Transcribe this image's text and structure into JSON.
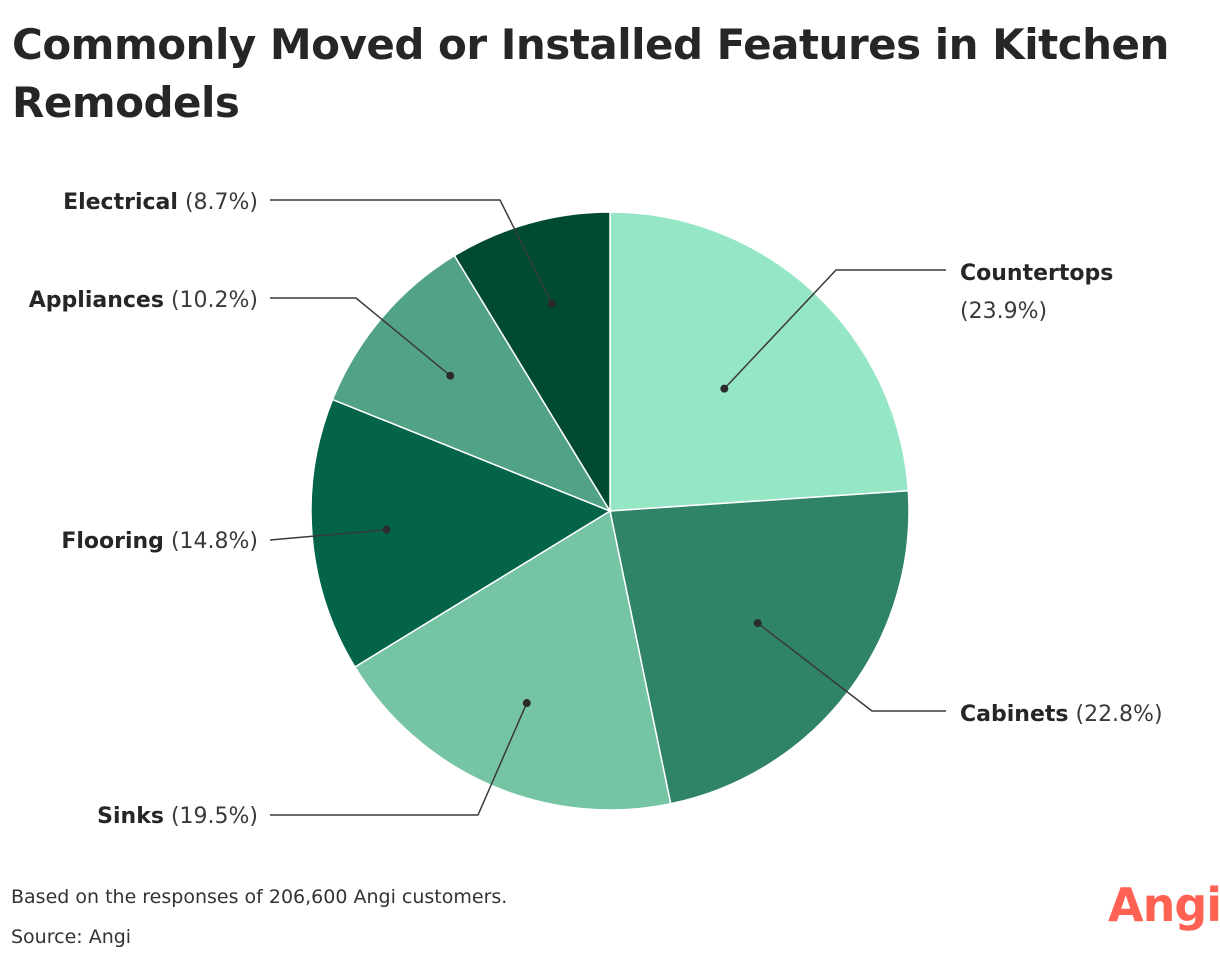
{
  "chart_data": {
    "type": "pie",
    "title": "Commonly Moved or Installed Features in Kitchen Remodels",
    "categories": [
      "Countertops",
      "Cabinets",
      "Sinks",
      "Flooring",
      "Appliances",
      "Electrical"
    ],
    "values": [
      23.9,
      22.8,
      19.5,
      14.8,
      10.2,
      8.7
    ],
    "percent_labels": [
      "(23.9%)",
      "(22.8%)",
      "(19.5%)",
      "(14.8%)",
      "(10.2%)",
      "(8.7%)"
    ],
    "colors": [
      "#95e6c5",
      "#2f8367",
      "#75c5a5",
      "#03644a",
      "#52a385",
      "#004a30"
    ],
    "start": "12 o'clock, clockwise"
  },
  "footer": {
    "note": "Based on the responses of 206,600 Angi customers.",
    "source": "Source: Angi"
  },
  "brand": {
    "logo_text": "Angi",
    "color": "#ff6153"
  }
}
